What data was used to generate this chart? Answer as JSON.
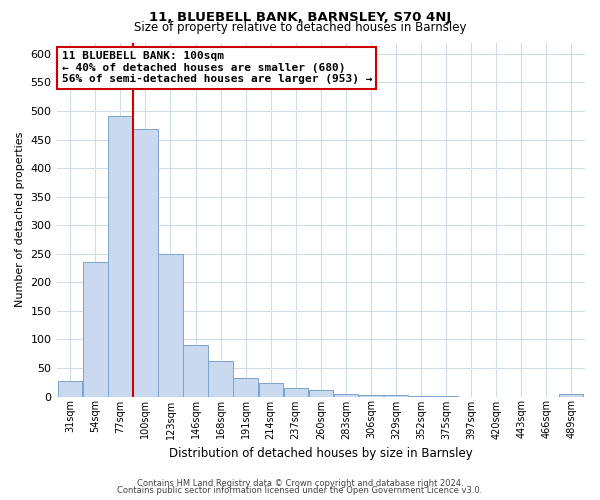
{
  "title1": "11, BLUEBELL BANK, BARNSLEY, S70 4NJ",
  "title2": "Size of property relative to detached houses in Barnsley",
  "xlabel": "Distribution of detached houses by size in Barnsley",
  "ylabel": "Number of detached properties",
  "bar_labels": [
    "31sqm",
    "54sqm",
    "77sqm",
    "100sqm",
    "123sqm",
    "146sqm",
    "168sqm",
    "191sqm",
    "214sqm",
    "237sqm",
    "260sqm",
    "283sqm",
    "306sqm",
    "329sqm",
    "352sqm",
    "375sqm",
    "397sqm",
    "420sqm",
    "443sqm",
    "466sqm",
    "489sqm"
  ],
  "bar_values": [
    27,
    235,
    492,
    468,
    250,
    90,
    62,
    33,
    24,
    15,
    12,
    5,
    3,
    2,
    1,
    1,
    0,
    0,
    0,
    0,
    5
  ],
  "bar_color": "#c9d9f0",
  "bar_edge_color": "#7aa3cc",
  "vline_x": 3.0,
  "vline_color": "#cc0000",
  "annotation_title": "11 BLUEBELL BANK: 100sqm",
  "annotation_line1": "← 40% of detached houses are smaller (680)",
  "annotation_line2": "56% of semi-detached houses are larger (953) →",
  "annotation_box_edge": "#cc0000",
  "ylim": [
    0,
    620
  ],
  "yticks": [
    0,
    50,
    100,
    150,
    200,
    250,
    300,
    350,
    400,
    450,
    500,
    550,
    600
  ],
  "footer1": "Contains HM Land Registry data © Crown copyright and database right 2024.",
  "footer2": "Contains public sector information licensed under the Open Government Licence v3.0.",
  "bg_color": "#ffffff",
  "grid_color": "#d0dce8"
}
